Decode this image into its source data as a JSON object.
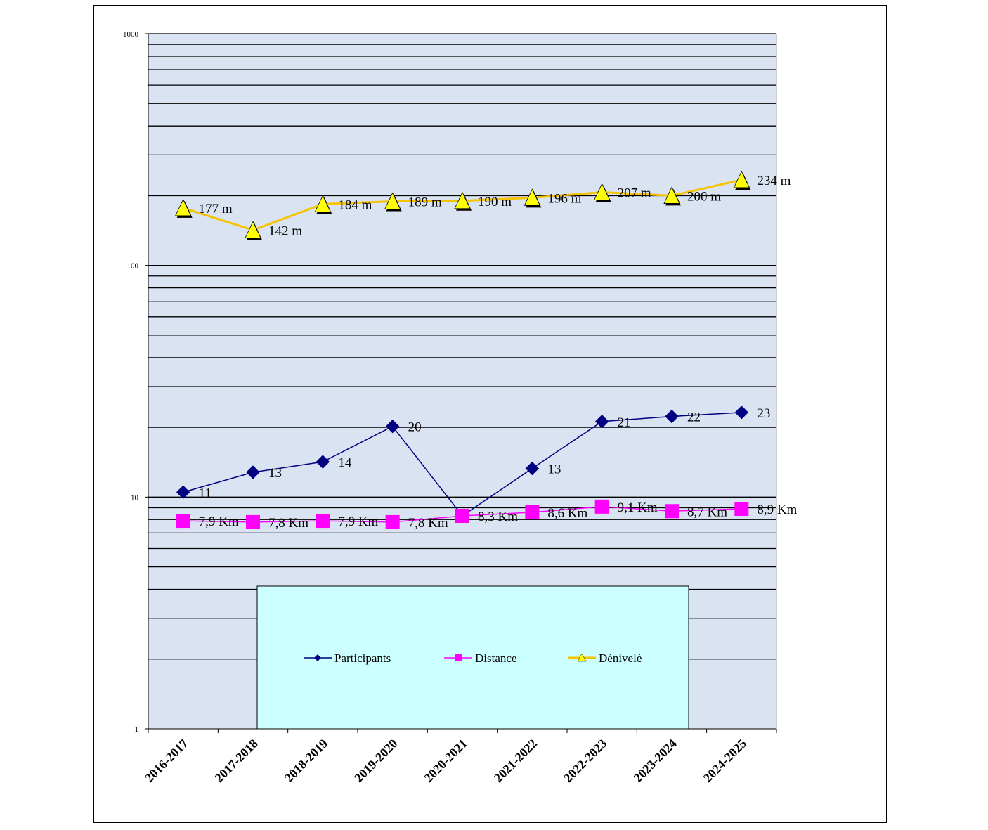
{
  "chart_data": {
    "type": "line",
    "title": "",
    "xlabel": "",
    "ylabel": "",
    "y_scale": "log",
    "ylim": [
      1,
      1000
    ],
    "y_ticks": [
      "1",
      "10",
      "100",
      "1000"
    ],
    "grid": true,
    "legend_position": "bottom-center",
    "categories": [
      "2016-2017",
      "2017-2018",
      "2018-2019",
      "2019-2020",
      "2020-2021",
      "2021-2022",
      "2022-2023",
      "2023-2024",
      "2024-2025"
    ],
    "series": [
      {
        "name": "Participants",
        "color": "#000080",
        "marker": "diamond",
        "values": [
          10.5,
          12.8,
          14.2,
          20.2,
          8.3,
          13.3,
          21.2,
          22.3,
          23.2
        ],
        "labels": [
          "11",
          "13",
          "14",
          "20",
          "",
          "13",
          "21",
          "22",
          "23"
        ]
      },
      {
        "name": "Distance",
        "color": "#ff00ff",
        "marker": "square",
        "values": [
          7.9,
          7.8,
          7.9,
          7.8,
          8.3,
          8.6,
          9.1,
          8.7,
          8.9
        ],
        "labels": [
          "7,9 Km",
          "7,8 Km",
          "7,9 Km",
          "7,8 Km",
          "8,3 Km",
          "8,6 Km",
          "9,1 Km",
          "8,7 Km",
          "8,9 Km"
        ]
      },
      {
        "name": "Dénivelé",
        "color": "#ffff00",
        "line_color": "#f5c400",
        "marker": "triangle",
        "values": [
          177,
          142,
          184,
          189,
          190,
          196,
          207,
          200,
          234
        ],
        "labels": [
          "177 m",
          "142 m",
          "184 m",
          "189 m",
          "190 m",
          "196 m",
          "207 m",
          "200 m",
          "234 m"
        ]
      }
    ]
  }
}
